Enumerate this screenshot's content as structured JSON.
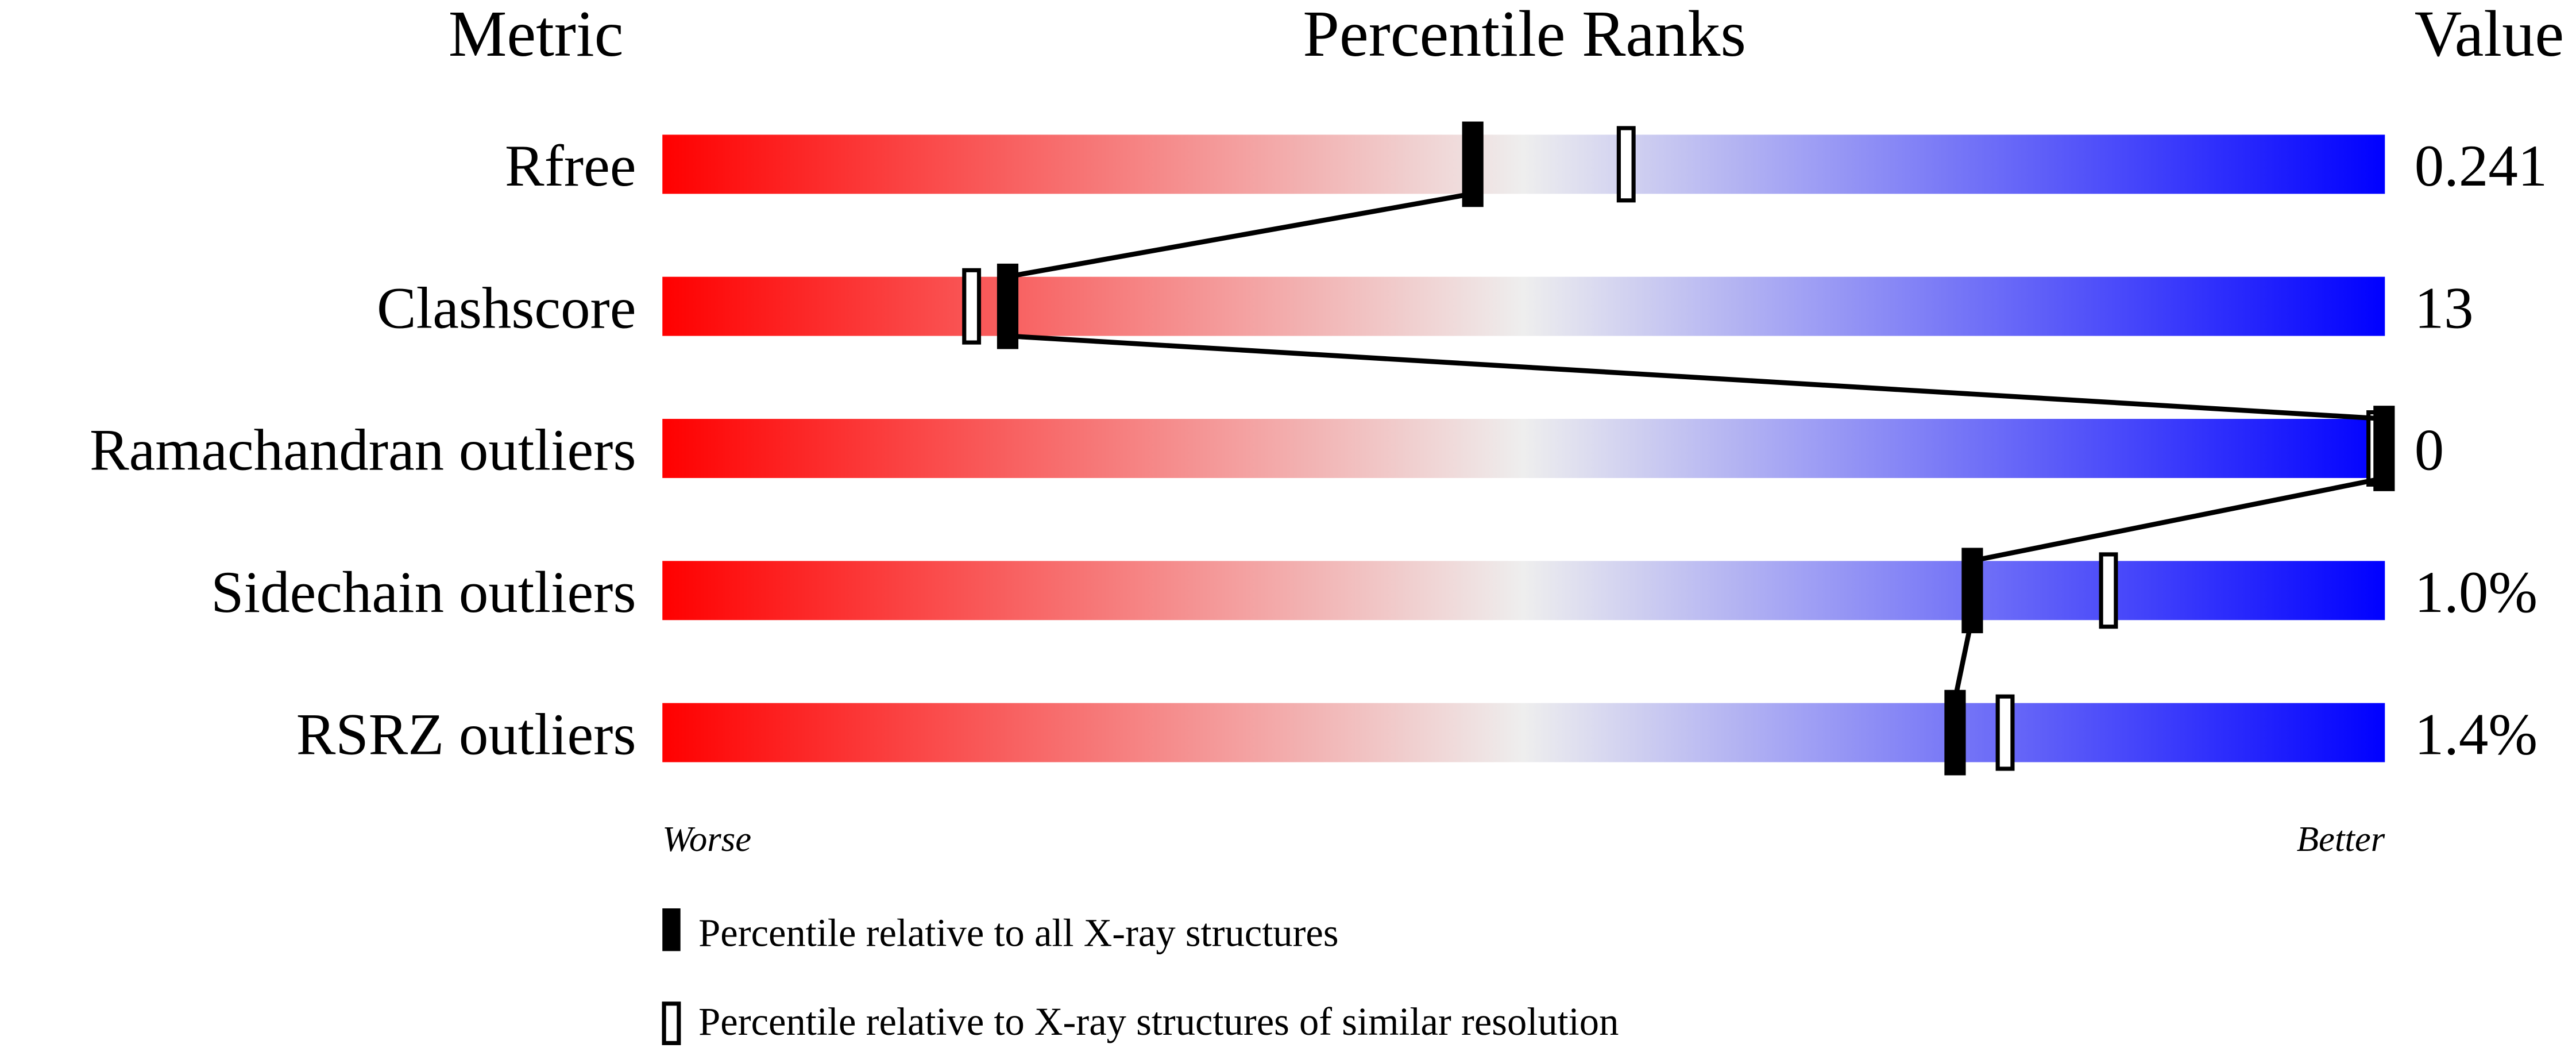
{
  "chart_data": {
    "type": "percentile-bars",
    "headers": {
      "metric": "Metric",
      "ranks": "Percentile Ranks",
      "value": "Value"
    },
    "axis": {
      "range": [
        0,
        100
      ],
      "left_label": "Worse",
      "right_label": "Better"
    },
    "gradient_colors": {
      "worse": "#ff0000",
      "middle": "#eeeeee",
      "better": "#0000ff"
    },
    "metrics": [
      {
        "name": "Rfree",
        "value": "0.241",
        "percentile_all": 47,
        "percentile_similar": 56
      },
      {
        "name": "Clashscore",
        "value": "13",
        "percentile_all": 20,
        "percentile_similar": 18
      },
      {
        "name": "Ramachandran outliers",
        "value": "0",
        "percentile_all": 100,
        "percentile_similar": 100
      },
      {
        "name": "Sidechain outliers",
        "value": "1.0%",
        "percentile_all": 76,
        "percentile_similar": 84
      },
      {
        "name": "RSRZ outliers",
        "value": "1.4%",
        "percentile_all": 75,
        "percentile_similar": 78
      }
    ],
    "legend": {
      "filled": "Percentile relative to all X-ray structures",
      "open": "Percentile relative to X-ray structures of similar resolution"
    }
  }
}
